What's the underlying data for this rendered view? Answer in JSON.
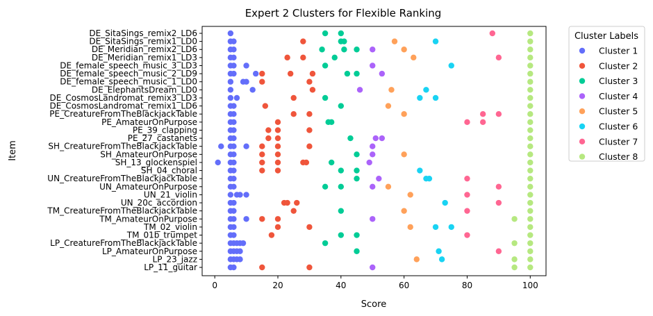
{
  "chart_data": {
    "type": "scatter",
    "title": "Expert 2 Clusters for Flexible Ranking",
    "xlabel": "Score",
    "ylabel": "Item",
    "xlim": [
      -4,
      105
    ],
    "xticks": [
      0,
      20,
      40,
      60,
      80,
      100
    ],
    "grid": false,
    "legend_title": "Cluster Labels",
    "legend_position": "outside-right",
    "items": [
      "DE_SitaSings_remix2_LD6",
      "DE_SitaSings_remix1_LD0",
      "DE_Meridian_remix2_LD6",
      "DE_Meridian_remix1_LD3",
      "DE_female_speech_music_3_LD3",
      "DE_female_speech_music_2_LD9",
      "DE_female_speech_music_1_LD0",
      "DE_ElephantsDream_LD0",
      "DE_CosmosLandromat_remix3_LD3",
      "DE_CosmosLandromat_remix1_LD6",
      "PE_CreatureFromTheBlackjackTable",
      "PE_AmateurOnPurpose",
      "PE_39_clapping",
      "PE_27_castanets",
      "SH_CreatureFromTheBlackjackTable",
      "SH_AmateurOnPurpose",
      "SH_13_glockenspiel",
      "SH_04_choral",
      "UN_CreatureFromTheBlackjackTable",
      "UN_AmateurOnPurpose",
      "UN_21_violin",
      "UN_20c_accordion",
      "TM_CreatureFromTheBlackjackTable",
      "TM_AmateurOnPurpose",
      "TM_02_violin",
      "TM_01b_trumpet",
      "LP_CreatureFromTheBlackjackTable",
      "LP_AmateurOnPurpose",
      "LP_23_jazz",
      "LP_11_guitar"
    ],
    "series": [
      {
        "name": "Cluster 1",
        "color": "#636efa",
        "points": [
          [
            5,
            0
          ],
          [
            5,
            1
          ],
          [
            6,
            1
          ],
          [
            5,
            2
          ],
          [
            6,
            2
          ],
          [
            5,
            3
          ],
          [
            6,
            3
          ],
          [
            5,
            4
          ],
          [
            6,
            4
          ],
          [
            10,
            4
          ],
          [
            5,
            5
          ],
          [
            6,
            5
          ],
          [
            13,
            5
          ],
          [
            5,
            6
          ],
          [
            9,
            6
          ],
          [
            10,
            6
          ],
          [
            5,
            7
          ],
          [
            12,
            7
          ],
          [
            5,
            8
          ],
          [
            7,
            8
          ],
          [
            5,
            9
          ],
          [
            6,
            9
          ],
          [
            5,
            10
          ],
          [
            6,
            10
          ],
          [
            5,
            11
          ],
          [
            6,
            11
          ],
          [
            5,
            12
          ],
          [
            6,
            12
          ],
          [
            5,
            13
          ],
          [
            6,
            13
          ],
          [
            2,
            14
          ],
          [
            5,
            14
          ],
          [
            6,
            14
          ],
          [
            10,
            14
          ],
          [
            5,
            15
          ],
          [
            6,
            15
          ],
          [
            1,
            16
          ],
          [
            5,
            16
          ],
          [
            6,
            16
          ],
          [
            5,
            17
          ],
          [
            6,
            17
          ],
          [
            5,
            18
          ],
          [
            6,
            18
          ],
          [
            5,
            19
          ],
          [
            6,
            19
          ],
          [
            5,
            20
          ],
          [
            7,
            20
          ],
          [
            8,
            20
          ],
          [
            10,
            20
          ],
          [
            5,
            21
          ],
          [
            6,
            21
          ],
          [
            5,
            22
          ],
          [
            6,
            22
          ],
          [
            5,
            23
          ],
          [
            6,
            23
          ],
          [
            10,
            23
          ],
          [
            5,
            24
          ],
          [
            6,
            24
          ],
          [
            5,
            25
          ],
          [
            6,
            25
          ],
          [
            5,
            26
          ],
          [
            6,
            26
          ],
          [
            7,
            26
          ],
          [
            8,
            26
          ],
          [
            9,
            26
          ],
          [
            5,
            27
          ],
          [
            6,
            27
          ],
          [
            7,
            27
          ],
          [
            8,
            27
          ],
          [
            5,
            28
          ],
          [
            6,
            28
          ],
          [
            7,
            28
          ],
          [
            8,
            28
          ],
          [
            5,
            29
          ],
          [
            6,
            29
          ]
        ]
      },
      {
        "name": "Cluster 2",
        "color": "#ef553b",
        "points": [
          [
            28,
            1
          ],
          [
            23,
            3
          ],
          [
            28,
            3
          ],
          [
            15,
            5
          ],
          [
            24,
            5
          ],
          [
            31,
            5
          ],
          [
            15,
            6
          ],
          [
            30,
            6
          ],
          [
            31,
            7
          ],
          [
            25,
            8
          ],
          [
            16,
            9
          ],
          [
            25,
            10
          ],
          [
            30,
            10
          ],
          [
            20,
            11
          ],
          [
            17,
            12
          ],
          [
            20,
            12
          ],
          [
            30,
            12
          ],
          [
            17,
            13
          ],
          [
            20,
            13
          ],
          [
            15,
            14
          ],
          [
            20,
            14
          ],
          [
            30,
            14
          ],
          [
            15,
            15
          ],
          [
            20,
            15
          ],
          [
            15,
            16
          ],
          [
            20,
            16
          ],
          [
            28,
            16
          ],
          [
            29,
            16
          ],
          [
            15,
            17
          ],
          [
            20,
            17
          ],
          [
            22,
            21
          ],
          [
            23,
            21
          ],
          [
            26,
            21
          ],
          [
            25,
            22
          ],
          [
            15,
            23
          ],
          [
            20,
            23
          ],
          [
            20,
            24
          ],
          [
            30,
            24
          ],
          [
            18,
            25
          ],
          [
            15,
            29
          ],
          [
            30,
            29
          ]
        ]
      },
      {
        "name": "Cluster 3",
        "color": "#00cc96",
        "points": [
          [
            35,
            0
          ],
          [
            40,
            0
          ],
          [
            40,
            1
          ],
          [
            41,
            1
          ],
          [
            34,
            2
          ],
          [
            41,
            2
          ],
          [
            45,
            2
          ],
          [
            38,
            3
          ],
          [
            35,
            4
          ],
          [
            42,
            5
          ],
          [
            45,
            5
          ],
          [
            35,
            8
          ],
          [
            40,
            9
          ],
          [
            36,
            11
          ],
          [
            37,
            11
          ],
          [
            43,
            13
          ],
          [
            45,
            15
          ],
          [
            37,
            16
          ],
          [
            40,
            17
          ],
          [
            45,
            17
          ],
          [
            45,
            18
          ],
          [
            35,
            19
          ],
          [
            40,
            19
          ],
          [
            40,
            22
          ],
          [
            40,
            25
          ],
          [
            45,
            25
          ],
          [
            35,
            26
          ],
          [
            45,
            27
          ]
        ]
      },
      {
        "name": "Cluster 4",
        "color": "#ab63fa",
        "points": [
          [
            50,
            2
          ],
          [
            50,
            4
          ],
          [
            53,
            5
          ],
          [
            46,
            7
          ],
          [
            51,
            13
          ],
          [
            53,
            13
          ],
          [
            50,
            14
          ],
          [
            50,
            15
          ],
          [
            49,
            16
          ],
          [
            52,
            18
          ],
          [
            50,
            19
          ],
          [
            50,
            23
          ],
          [
            50,
            29
          ]
        ]
      },
      {
        "name": "Cluster 5",
        "color": "#ffa15a",
        "points": [
          [
            57,
            1
          ],
          [
            60,
            2
          ],
          [
            63,
            3
          ],
          [
            56,
            7
          ],
          [
            55,
            9
          ],
          [
            60,
            10
          ],
          [
            60,
            15
          ],
          [
            55,
            19
          ],
          [
            62,
            20
          ],
          [
            60,
            22
          ],
          [
            62,
            24
          ],
          [
            64,
            28
          ]
        ]
      },
      {
        "name": "Cluster 6",
        "color": "#19d3f3",
        "points": [
          [
            70,
            1
          ],
          [
            75,
            4
          ],
          [
            67,
            7
          ],
          [
            65,
            8
          ],
          [
            70,
            8
          ],
          [
            65,
            17
          ],
          [
            67,
            18
          ],
          [
            68,
            18
          ],
          [
            73,
            21
          ],
          [
            70,
            24
          ],
          [
            75,
            24
          ],
          [
            71,
            27
          ],
          [
            72,
            28
          ]
        ]
      },
      {
        "name": "Cluster 7",
        "color": "#ff6692",
        "points": [
          [
            88,
            0
          ],
          [
            90,
            3
          ],
          [
            85,
            10
          ],
          [
            90,
            10
          ],
          [
            80,
            11
          ],
          [
            85,
            11
          ],
          [
            80,
            18
          ],
          [
            90,
            19
          ],
          [
            80,
            20
          ],
          [
            90,
            21
          ],
          [
            80,
            22
          ],
          [
            80,
            25
          ],
          [
            90,
            27
          ]
        ]
      },
      {
        "name": "Cluster 8",
        "color": "#b6e880",
        "points": [
          [
            100,
            0
          ],
          [
            100,
            1
          ],
          [
            100,
            2
          ],
          [
            100,
            3
          ],
          [
            100,
            4
          ],
          [
            100,
            5
          ],
          [
            100,
            6
          ],
          [
            100,
            7
          ],
          [
            100,
            8
          ],
          [
            100,
            9
          ],
          [
            100,
            10
          ],
          [
            100,
            11
          ],
          [
            100,
            12
          ],
          [
            100,
            13
          ],
          [
            100,
            14
          ],
          [
            100,
            15
          ],
          [
            100,
            16
          ],
          [
            100,
            17
          ],
          [
            100,
            18
          ],
          [
            100,
            19
          ],
          [
            100,
            20
          ],
          [
            100,
            21
          ],
          [
            100,
            22
          ],
          [
            95,
            23
          ],
          [
            100,
            23
          ],
          [
            100,
            24
          ],
          [
            100,
            25
          ],
          [
            95,
            26
          ],
          [
            100,
            26
          ],
          [
            100,
            27
          ],
          [
            95,
            28
          ],
          [
            100,
            28
          ],
          [
            95,
            29
          ],
          [
            100,
            29
          ]
        ]
      }
    ]
  }
}
